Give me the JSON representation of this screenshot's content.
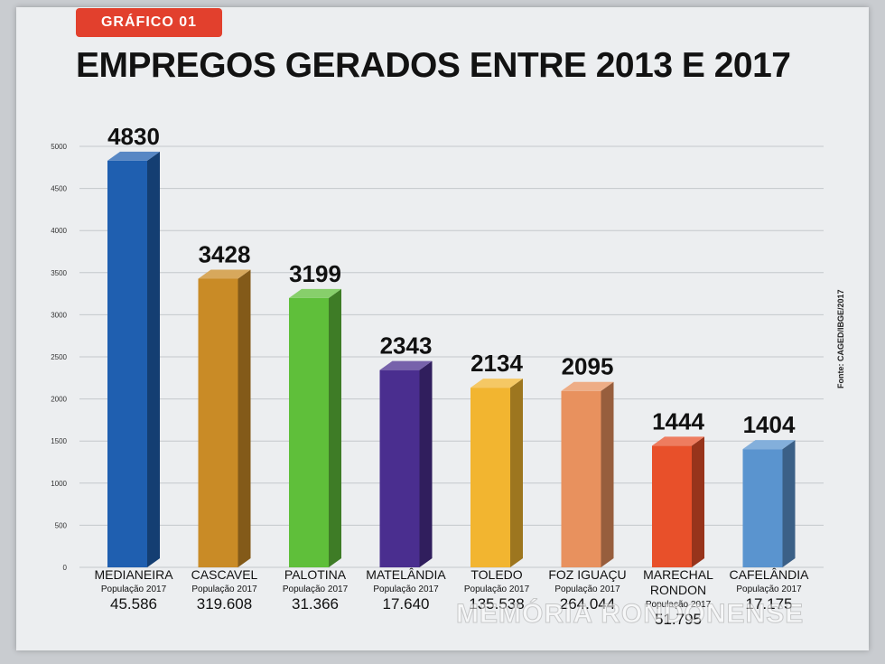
{
  "header": {
    "badge": "GRÁFICO 01",
    "title": "EMPREGOS GERADOS ENTRE 2013 E 2017",
    "source": "Fonte: CAGED/IBGE/2017",
    "watermark": "MEMÓRIA RONDONENSE"
  },
  "chart_data": {
    "type": "bar",
    "title": "EMPREGOS GERADOS ENTRE 2013 E 2017",
    "xlabel": "",
    "ylabel": "",
    "ylim": [
      0,
      5000
    ],
    "yticks": [
      0,
      500,
      1000,
      1500,
      2000,
      2500,
      3000,
      3500,
      4000,
      4500,
      5000
    ],
    "grid": true,
    "categories": [
      "MEDIANEIRA",
      "CASCAVEL",
      "PALOTINA",
      "MATELÂNDIA",
      "TOLEDO",
      "FOZ IGUAÇU",
      "MARECHAL RONDON",
      "CAFELÂNDIA"
    ],
    "category_lines": [
      [
        "MEDIANEIRA"
      ],
      [
        "CASCAVEL"
      ],
      [
        "PALOTINA"
      ],
      [
        "MATELÂNDIA"
      ],
      [
        "TOLEDO"
      ],
      [
        "FOZ IGUAÇU"
      ],
      [
        "MARECHAL",
        "RONDON"
      ],
      [
        "CAFELÂNDIA"
      ]
    ],
    "values": [
      4830,
      3428,
      3199,
      2343,
      2134,
      2095,
      1444,
      1404
    ],
    "value_labels": [
      "4830",
      "3428",
      "3199",
      "2343",
      "2134",
      "2095",
      "1444",
      "1404"
    ],
    "population_label": "População 2017",
    "populations": [
      "45.586",
      "319.608",
      "31.366",
      "17.640",
      "135.538",
      "264.044",
      "51.795",
      "17.175"
    ],
    "colors": [
      "#1f5fb0",
      "#c98b26",
      "#5fbf3a",
      "#4a2e8f",
      "#f2b530",
      "#e8915e",
      "#e8502a",
      "#5a94cf"
    ]
  }
}
